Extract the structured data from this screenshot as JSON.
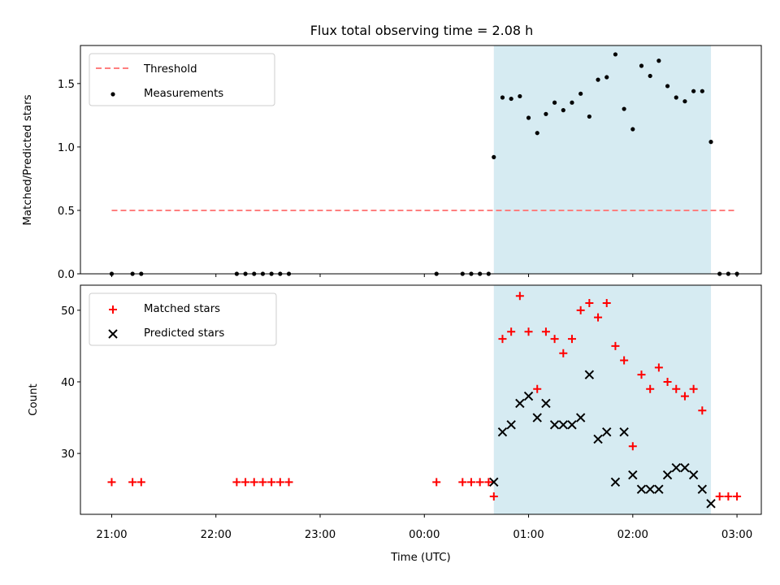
{
  "chart_data": {
    "title": "Flux total observing time = 2.08 h",
    "xlabel": "Time (UTC)",
    "xlim": [
      "20:42",
      "03:14"
    ],
    "x_ticks": [
      "21:00",
      "22:00",
      "23:00",
      "00:00",
      "01:00",
      "02:00",
      "03:00"
    ],
    "shaded_interval": [
      "00:40",
      "02:45"
    ],
    "shade_color": "#add8e6",
    "panels": [
      {
        "type": "scatter",
        "ylabel": "Matched/Predicted stars",
        "ylim": [
          0,
          1.8
        ],
        "y_ticks": [
          "0.0",
          "0.5",
          "1.0",
          "1.5"
        ],
        "legend_position": "upper-left",
        "threshold": {
          "name": "Threshold",
          "y": 0.5,
          "x_start": "21:00",
          "x_end": "03:00",
          "color": "#ff7f7f"
        },
        "series": [
          {
            "name": "Measurements",
            "color": "#000000",
            "marker": "dot",
            "x": [
              "21:00",
              "21:12",
              "21:17",
              "22:12",
              "22:17",
              "22:22",
              "22:27",
              "22:32",
              "22:37",
              "22:42",
              "00:07",
              "00:22",
              "00:27",
              "00:32",
              "00:37",
              "00:40",
              "00:45",
              "00:50",
              "00:55",
              "01:00",
              "01:05",
              "01:10",
              "01:15",
              "01:20",
              "01:25",
              "01:30",
              "01:35",
              "01:40",
              "01:45",
              "01:50",
              "01:55",
              "02:00",
              "02:05",
              "02:10",
              "02:15",
              "02:20",
              "02:25",
              "02:30",
              "02:35",
              "02:40",
              "02:45",
              "02:50",
              "02:55",
              "03:00"
            ],
            "y": [
              0,
              0,
              0,
              0,
              0,
              0,
              0,
              0,
              0,
              0,
              0,
              0,
              0,
              0,
              0,
              0.92,
              1.39,
              1.38,
              1.4,
              1.23,
              1.11,
              1.26,
              1.35,
              1.29,
              1.35,
              1.42,
              1.24,
              1.53,
              1.55,
              1.73,
              1.3,
              1.14,
              1.64,
              1.56,
              1.68,
              1.48,
              1.39,
              1.36,
              1.44,
              1.44,
              1.04,
              0,
              0,
              0
            ]
          }
        ]
      },
      {
        "type": "scatter",
        "ylabel": "Count",
        "ylim": [
          21.5,
          53.5
        ],
        "y_ticks": [
          "30",
          "40",
          "50"
        ],
        "legend_position": "upper-left",
        "series": [
          {
            "name": "Matched stars",
            "color": "#ff0000",
            "marker": "plus",
            "x": [
              "21:00",
              "21:12",
              "21:17",
              "22:12",
              "22:17",
              "22:22",
              "22:27",
              "22:32",
              "22:37",
              "22:42",
              "00:07",
              "00:22",
              "00:27",
              "00:32",
              "00:37",
              "00:40",
              "00:45",
              "00:50",
              "00:55",
              "01:00",
              "01:05",
              "01:10",
              "01:15",
              "01:20",
              "01:25",
              "01:30",
              "01:35",
              "01:40",
              "01:45",
              "01:50",
              "01:55",
              "02:00",
              "02:05",
              "02:10",
              "02:15",
              "02:20",
              "02:25",
              "02:30",
              "02:35",
              "02:40",
              "02:50",
              "02:55",
              "03:00"
            ],
            "y": [
              26,
              26,
              26,
              26,
              26,
              26,
              26,
              26,
              26,
              26,
              26,
              26,
              26,
              26,
              26,
              24,
              46,
              47,
              52,
              47,
              39,
              47,
              46,
              44,
              46,
              50,
              51,
              49,
              51,
              45,
              43,
              31,
              41,
              39,
              42,
              40,
              39,
              38,
              39,
              36,
              24,
              24,
              24
            ]
          },
          {
            "name": "Predicted stars",
            "color": "#000000",
            "marker": "x",
            "x": [
              "00:40",
              "00:45",
              "00:50",
              "00:55",
              "01:00",
              "01:05",
              "01:10",
              "01:15",
              "01:20",
              "01:25",
              "01:30",
              "01:35",
              "01:40",
              "01:45",
              "01:50",
              "01:55",
              "02:00",
              "02:05",
              "02:10",
              "02:15",
              "02:20",
              "02:25",
              "02:30",
              "02:35",
              "02:40",
              "02:45"
            ],
            "y": [
              26,
              33,
              34,
              37,
              38,
              35,
              37,
              34,
              34,
              34,
              35,
              41,
              32,
              33,
              26,
              33,
              27,
              25,
              25,
              25,
              27,
              28,
              28,
              27,
              25,
              23
            ]
          }
        ]
      }
    ]
  }
}
